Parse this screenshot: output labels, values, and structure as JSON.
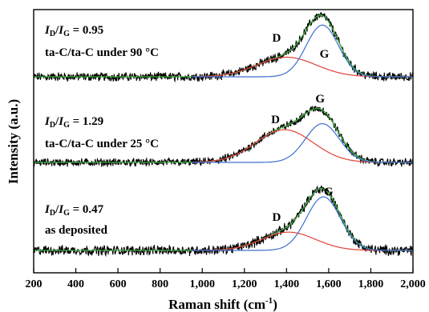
{
  "chart_data": {
    "type": "line",
    "xlabel_main": "Raman shift (cm",
    "xlabel_sup": "-1",
    "xlabel_end": ")",
    "ylabel": "Intensity (a.u.)",
    "xlim": [
      200,
      2000
    ],
    "xticks": [
      200,
      400,
      600,
      800,
      1000,
      1200,
      1400,
      1600,
      1800,
      2000
    ],
    "xtick_labels": [
      "200",
      "400",
      "600",
      "800",
      "1,000",
      "1,200",
      "1,400",
      "1,600",
      "1,800",
      "2,000"
    ],
    "grid": false,
    "legend": "none",
    "colors": {
      "raw": "#000000",
      "fit": "#3db03d",
      "D_band": "#e0403a",
      "G_band": "#3a6fd0"
    },
    "spectra": [
      {
        "id": "top",
        "ratio_prefix_I": "I",
        "ratio_sub_D": "D",
        "ratio_slash": "/",
        "ratio_sub_G": "G",
        "ratio_value": " = 0.95",
        "condition": "ta-C/ta-C under 90 °C",
        "D_label": "D",
        "G_label": "G",
        "D_peak": {
          "center": 1400,
          "width": 330,
          "height": 0.36
        },
        "G_peak": {
          "center": 1570,
          "width": 180,
          "height": 0.95
        },
        "ratio": 0.95,
        "D_label_pos": 1370,
        "G_label_pos": 1580
      },
      {
        "id": "middle",
        "ratio_prefix_I": "I",
        "ratio_sub_D": "D",
        "ratio_slash": "/",
        "ratio_sub_G": "G",
        "ratio_value": " = 1.29",
        "condition": "ta-C/ta-C under 25 °C",
        "D_label": "D",
        "G_label": "G",
        "D_peak": {
          "center": 1390,
          "width": 320,
          "height": 0.66
        },
        "G_peak": {
          "center": 1570,
          "width": 190,
          "height": 0.78
        },
        "ratio": 1.29,
        "D_label_pos": 1365,
        "G_label_pos": 1560
      },
      {
        "id": "bottom",
        "ratio_prefix_I": "I",
        "ratio_sub_D": "D",
        "ratio_slash": "/",
        "ratio_sub_G": "G",
        "ratio_value": " = 0.47",
        "condition": "as deposited",
        "D_label": "D",
        "G_label": "G",
        "D_peak": {
          "center": 1410,
          "width": 300,
          "height": 0.3
        },
        "G_peak": {
          "center": 1575,
          "width": 190,
          "height": 0.88
        },
        "ratio": 0.47,
        "D_label_pos": 1370,
        "G_label_pos": 1600
      }
    ]
  }
}
